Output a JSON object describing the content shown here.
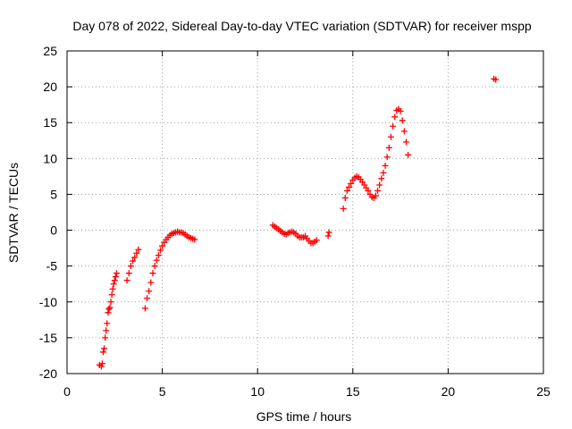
{
  "chart_data": {
    "type": "scatter",
    "title": "Day 078 of 2022, Sidereal Day-to-day VTEC variation (SDTVAR) for receiver mspp",
    "xlabel": "GPS time / hours",
    "ylabel": "SDTVAR / TECUs",
    "xlim": [
      0,
      25
    ],
    "ylim": [
      -20,
      25
    ],
    "xticks": [
      0,
      5,
      10,
      15,
      20,
      25
    ],
    "yticks": [
      -20,
      -15,
      -10,
      -5,
      0,
      5,
      10,
      15,
      20,
      25
    ],
    "xtick_labels": [
      "0",
      "5",
      "10",
      "15",
      "20",
      "25"
    ],
    "ytick_labels": [
      "-20",
      "-15",
      "-10",
      "-5",
      "0",
      "5",
      "10",
      "15",
      "20",
      "25"
    ],
    "grid": true,
    "marker": "+",
    "color": "#ff0000",
    "series": [
      {
        "name": "mspp",
        "x": [
          1.7,
          1.8,
          1.85,
          1.9,
          1.95,
          2.0,
          2.05,
          2.1,
          2.15,
          2.2,
          2.25,
          2.3,
          2.35,
          2.4,
          2.45,
          2.5,
          2.55,
          2.6,
          3.15,
          3.25,
          3.35,
          3.45,
          3.55,
          3.65,
          3.75,
          4.1,
          4.2,
          4.3,
          4.4,
          4.5,
          4.6,
          4.7,
          4.8,
          4.9,
          5.0,
          5.1,
          5.2,
          5.3,
          5.4,
          5.5,
          5.6,
          5.7,
          5.8,
          5.9,
          6.0,
          6.1,
          6.2,
          6.3,
          6.4,
          6.5,
          6.6,
          6.7,
          10.8,
          10.9,
          11.0,
          11.1,
          11.2,
          11.3,
          11.4,
          11.5,
          11.6,
          11.7,
          11.8,
          11.9,
          12.0,
          12.1,
          12.2,
          12.3,
          12.4,
          12.5,
          12.6,
          12.7,
          12.8,
          12.9,
          13.0,
          13.1,
          13.7,
          13.75,
          14.5,
          14.6,
          14.7,
          14.8,
          14.9,
          15.0,
          15.1,
          15.2,
          15.3,
          15.4,
          15.5,
          15.6,
          15.7,
          15.8,
          15.9,
          16.0,
          16.1,
          16.2,
          16.3,
          16.4,
          16.5,
          16.6,
          16.7,
          16.8,
          16.9,
          17.0,
          17.1,
          17.2,
          17.3,
          17.4,
          17.5,
          17.6,
          17.7,
          17.8,
          17.9,
          22.4,
          22.5
        ],
        "y": [
          -18.8,
          -19.0,
          -18.6,
          -17.0,
          -16.5,
          -15.0,
          -14.0,
          -13.0,
          -11.5,
          -11.0,
          -10.8,
          -10.0,
          -9.0,
          -8.2,
          -7.5,
          -7.0,
          -6.5,
          -6.0,
          -7.0,
          -6.0,
          -5.0,
          -4.3,
          -3.8,
          -3.2,
          -2.7,
          -10.9,
          -9.5,
          -8.5,
          -7.3,
          -6.0,
          -5.0,
          -4.2,
          -3.5,
          -2.8,
          -2.2,
          -1.7,
          -1.3,
          -1.0,
          -0.7,
          -0.5,
          -0.4,
          -0.3,
          -0.2,
          -0.3,
          -0.3,
          -0.4,
          -0.6,
          -0.8,
          -1.0,
          -1.1,
          -1.2,
          -1.3,
          0.7,
          0.5,
          0.3,
          0.1,
          -0.1,
          -0.3,
          -0.5,
          -0.6,
          -0.4,
          -0.3,
          -0.2,
          -0.3,
          -0.5,
          -0.8,
          -1.0,
          -1.0,
          -1.0,
          -0.8,
          -1.2,
          -1.5,
          -1.8,
          -1.8,
          -1.6,
          -1.4,
          -0.8,
          -0.3,
          3.0,
          4.5,
          5.5,
          6.0,
          6.5,
          7.0,
          7.3,
          7.5,
          7.4,
          7.1,
          6.7,
          6.3,
          5.9,
          5.5,
          5.0,
          4.6,
          4.5,
          4.8,
          5.5,
          6.3,
          7.2,
          8.0,
          9.0,
          10.2,
          11.5,
          13.0,
          14.5,
          15.8,
          16.7,
          16.9,
          16.6,
          15.3,
          13.8,
          12.3,
          10.5,
          21.1,
          21.0
        ]
      }
    ]
  }
}
